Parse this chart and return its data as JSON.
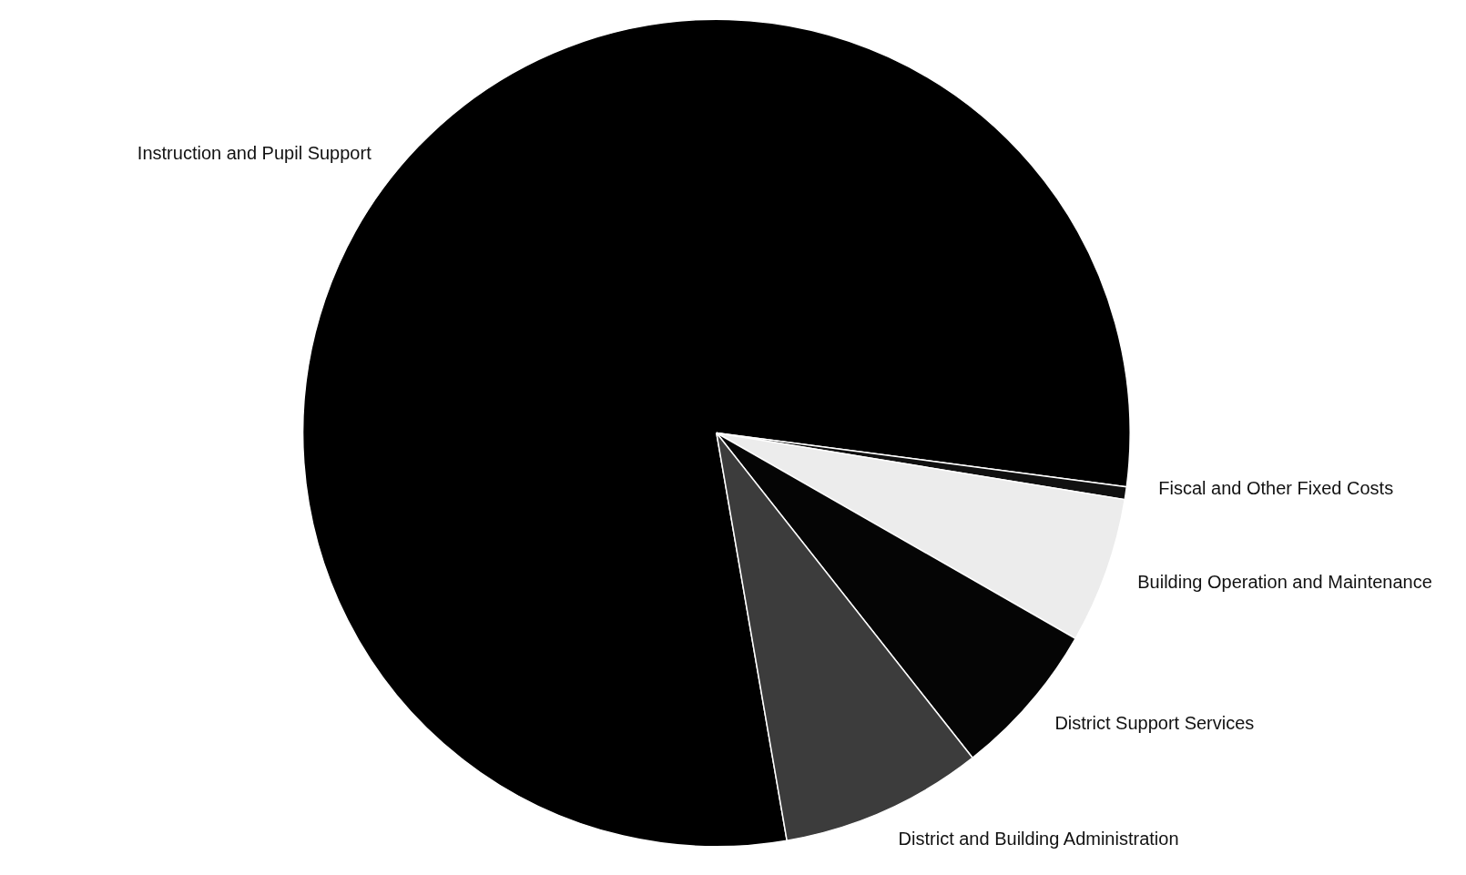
{
  "chart_data": {
    "type": "pie",
    "categories": [
      "Instruction and Pupil Support",
      "Fiscal and Other Fixed Costs",
      "Building Operation and Maintenance",
      "District Support Services",
      "District and Building Administration"
    ],
    "values": [
      79.8,
      0.5,
      5.7,
      6.1,
      7.9
    ],
    "colors": [
      "#000000",
      "#111111",
      "#ececec",
      "#050505",
      "#3c3c3c"
    ]
  }
}
